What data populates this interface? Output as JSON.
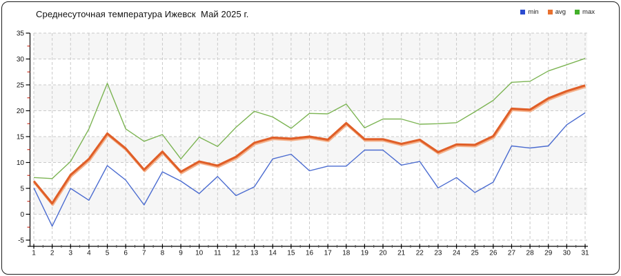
{
  "chart_data": {
    "type": "line",
    "title": "Среднесуточная температура Ижевск  Май 2025 г.",
    "xlabel": "",
    "ylabel": "",
    "x": [
      1,
      2,
      3,
      4,
      5,
      6,
      7,
      8,
      9,
      10,
      11,
      12,
      13,
      14,
      15,
      16,
      17,
      18,
      19,
      20,
      21,
      22,
      23,
      24,
      25,
      26,
      27,
      28,
      29,
      30,
      31
    ],
    "x_tick_labels": [
      "1",
      "2",
      "3",
      "4",
      "5",
      "6",
      "7",
      "8",
      "9",
      "10",
      "11",
      "12",
      "13",
      "14",
      "15",
      "16",
      "17",
      "18",
      "19",
      "20",
      "21",
      "22",
      "23",
      "24",
      "25",
      "26",
      "27",
      "28",
      "29",
      "30",
      "31"
    ],
    "y_ticks": [
      35,
      30,
      25,
      20,
      15,
      10,
      5,
      0,
      -5
    ],
    "ylim": [
      -5,
      35
    ],
    "xlim": [
      1,
      31
    ],
    "grid": "dashed, both axes, every day and every 5 degrees",
    "plot_bands": "horizontal alternating 5-degree bands, gray from 35-30 downward",
    "legend_position": "top-right",
    "series": [
      {
        "name": "min",
        "color": "#4a6bd0",
        "swatch": "#2b4bd0",
        "width": 1.4,
        "values": [
          5.1,
          -2.3,
          5.0,
          2.7,
          9.4,
          6.6,
          1.8,
          8.2,
          6.4,
          4.0,
          7.3,
          3.6,
          5.3,
          10.7,
          11.6,
          8.4,
          9.3,
          9.3,
          12.4,
          12.4,
          9.5,
          10.2,
          5.1,
          7.1,
          4.2,
          6.2,
          13.2,
          12.8,
          13.2,
          17.3,
          19.6
        ]
      },
      {
        "name": "avg",
        "color": "#e05f28",
        "swatch": "#e8712f",
        "width": 3.2,
        "halo": "#f4b априори",
        "values": [
          6.4,
          2.1,
          7.6,
          10.7,
          15.6,
          12.7,
          8.6,
          12.1,
          8.2,
          10.2,
          9.4,
          11.1,
          13.8,
          14.8,
          14.6,
          15.0,
          14.4,
          17.6,
          14.5,
          14.5,
          13.6,
          14.4,
          12.0,
          13.5,
          13.4,
          15.1,
          20.4,
          20.2,
          22.4,
          23.8,
          24.9
        ]
      },
      {
        "name": "max",
        "color": "#7cb453",
        "swatch": "#43b02a",
        "width": 1.4,
        "values": [
          7.1,
          6.9,
          10.2,
          16.5,
          25.3,
          16.5,
          14.1,
          15.4,
          10.7,
          14.9,
          13.1,
          16.8,
          19.9,
          18.8,
          16.6,
          19.5,
          19.4,
          21.3,
          16.7,
          18.4,
          18.4,
          17.4,
          17.5,
          17.7,
          19.8,
          22.0,
          25.5,
          25.7,
          27.7,
          28.9,
          30.1
        ]
      }
    ],
    "colors": {
      "band_gray": "#f6f6f6",
      "gridline": "#c9c9c9",
      "axis": "#000000",
      "y_minor_tick": "#cc3322",
      "x_minor_tick": "#444444",
      "avg_halo": "#f4b28c",
      "tick_label": "#111111"
    }
  }
}
